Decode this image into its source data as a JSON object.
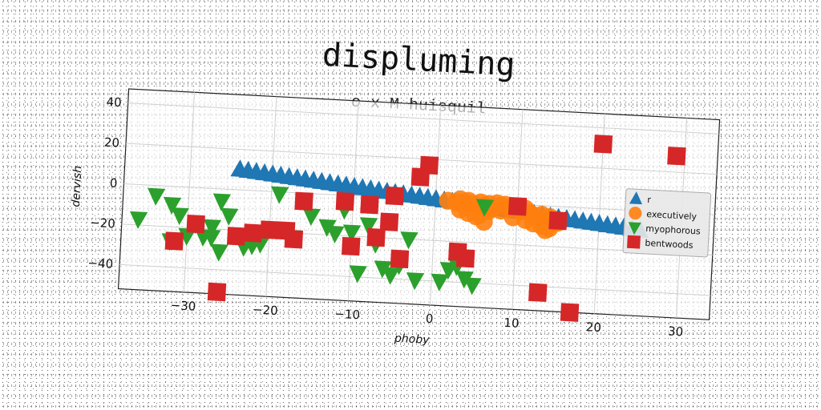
{
  "chart_data": {
    "type": "scatter",
    "title": "displuming",
    "subtitle": "o x M huisquil",
    "xlabel": "phoby",
    "ylabel": "dervish",
    "xlim": [
      -38,
      34
    ],
    "ylim": [
      -52,
      47
    ],
    "xticks": [
      -30,
      -20,
      -10,
      0,
      10,
      20,
      30
    ],
    "yticks": [
      -40,
      -20,
      0,
      20,
      40
    ],
    "grid": true,
    "legend_position": "right",
    "series": [
      {
        "name": "r",
        "marker": "triangle-up",
        "color": "#1f77b4",
        "x": [
          -24.0,
          -23.0,
          -22.0,
          -21.0,
          -20.0,
          -19.0,
          -18.0,
          -17.0,
          -16.0,
          -15.0,
          -14.0,
          -13.0,
          -12.0,
          -11.0,
          -10.0,
          -9.0,
          -8.0,
          -7.0,
          -6.0,
          -5.0,
          -4.0,
          -3.0,
          -2.0,
          -1.0,
          0.0,
          1.0,
          2.0,
          3.0,
          4.0,
          5.0,
          6.0,
          7.0,
          8.0,
          9.0,
          10.0,
          11.0,
          12.0,
          13.0,
          14.0,
          15.0,
          16.0,
          17.0,
          18.0,
          19.0,
          20.0,
          21.0,
          22.0,
          23.0,
          24.0,
          25.0
        ],
        "y": [
          10.0,
          9.6,
          9.2,
          8.8,
          8.4,
          8.0,
          7.6,
          7.2,
          6.8,
          6.4,
          6.0,
          5.6,
          5.2,
          4.8,
          4.4,
          4.0,
          3.6,
          3.2,
          2.8,
          2.4,
          2.0,
          1.6,
          1.2,
          0.8,
          0.4,
          0.0,
          -0.4,
          -0.8,
          -1.2,
          -1.6,
          -2.0,
          -2.4,
          -2.8,
          -3.2,
          -3.6,
          -4.0,
          -4.4,
          -4.8,
          -5.2,
          -5.6,
          -6.0,
          -6.4,
          -6.8,
          -7.2,
          -7.6,
          -8.0,
          -8.4,
          -8.8,
          -9.2,
          -9.6
        ]
      },
      {
        "name": "executively",
        "marker": "circle",
        "color": "#ff7f0e",
        "x": [
          1.5,
          2.5,
          3.0,
          3.5,
          4.0,
          4.5,
          5.0,
          5.5,
          6.0,
          6.5,
          7.0,
          7.5,
          8.0,
          8.5,
          9.0,
          10.0,
          10.5,
          11.0,
          11.5,
          12.0,
          12.5,
          13.0,
          13.5,
          14.0,
          14.5,
          15.0,
          3.0,
          4.0,
          5.5,
          6.5,
          8.0,
          9.5,
          12.0,
          13.0,
          14.0,
          5.0,
          6.0,
          11.0,
          13.5
        ],
        "y": [
          0.0,
          -0.5,
          1.0,
          -2.0,
          0.5,
          -1.0,
          -3.0,
          0.0,
          -1.5,
          -0.5,
          -2.5,
          0.0,
          -1.0,
          -0.5,
          -2.0,
          -1.0,
          -3.0,
          -2.0,
          -4.0,
          -5.0,
          -6.5,
          -4.5,
          -6.0,
          -5.5,
          -7.0,
          -8.0,
          -4.0,
          -5.5,
          -6.0,
          -4.0,
          -3.5,
          -6.5,
          -9.0,
          -10.0,
          -11.0,
          -7.0,
          -9.5,
          -7.5,
          -12.0
        ]
      },
      {
        "name": "myophorous",
        "marker": "triangle-down",
        "color": "#2ca02c",
        "x": [
          -34,
          -36,
          -32,
          -31,
          -32,
          -30,
          -28,
          -29,
          -27,
          -27,
          -26,
          -26,
          -25,
          -23,
          -22,
          -21,
          -19,
          -17,
          -15,
          -13,
          -12,
          -11,
          -10,
          -9,
          -8,
          -7,
          -6,
          -5,
          -4,
          -3,
          -2,
          1,
          2,
          3,
          4,
          5,
          6
        ],
        "y": [
          -5,
          -17,
          -9,
          -14,
          -27,
          -24,
          -24,
          -18,
          -19,
          -24,
          -31,
          -6,
          -13,
          -28,
          -27,
          -26,
          -1,
          -22,
          -11,
          -16,
          -19,
          -7,
          -18,
          -38,
          -14,
          -23,
          -35,
          -38,
          -33,
          -20,
          -40,
          -40,
          -34,
          -32,
          -38,
          -41,
          -2
        ]
      },
      {
        "name": "bentwoods",
        "marker": "square",
        "color": "#d62728",
        "x": [
          -31.5,
          -29.0,
          -26.0,
          -24.0,
          -22.0,
          -20.0,
          -17.0,
          -16.0,
          -11.0,
          -10.0,
          -8.0,
          -7.0,
          -5.0,
          -4.0,
          -2.0,
          -1.0,
          3.0,
          4.0,
          10.0,
          13.0,
          17.0,
          20.0,
          29.0,
          15.0,
          -5.5,
          -18.0
        ],
        "y": [
          -27.0,
          -18.0,
          -51.0,
          -23.0,
          -21.0,
          -19.0,
          -23.0,
          -4.0,
          -3.0,
          -25.0,
          -4.0,
          -20.0,
          1.0,
          -30.0,
          11.0,
          17.0,
          -25.0,
          -28.0,
          -1.0,
          -43.0,
          -52.0,
          32.0,
          28.0,
          -7.0,
          -12.0,
          -19.0
        ]
      }
    ]
  }
}
